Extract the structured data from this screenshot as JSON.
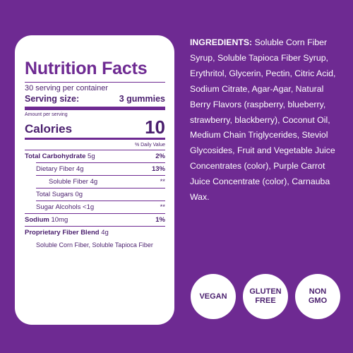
{
  "panel": {
    "title": "Nutrition Facts",
    "servings_per_container": "30 serving per container",
    "serving_size_label": "Serving size:",
    "serving_size_value": "3 gummies",
    "amount_per_serving": "Amount per serving",
    "calories_label": "Calories",
    "calories_value": "10",
    "daily_value_header": "% Daily Value",
    "rows": [
      {
        "label": "Total Carbohydrate",
        "amount": "5g",
        "pct": "2%"
      },
      {
        "label": "Dietary Fiber",
        "amount": "4g",
        "pct": "13%"
      },
      {
        "label": "Soluble Fiber",
        "amount": "4g",
        "pct": "**"
      },
      {
        "label": "Total Sugars",
        "amount": "0g",
        "pct": ""
      },
      {
        "label": "Sugar Alcohols",
        "amount": "<1g",
        "pct": "**"
      },
      {
        "label": "Sodium",
        "amount": "10mg",
        "pct": "1%"
      },
      {
        "label": "Proprietary Fiber Blend",
        "amount": "4g",
        "pct": ""
      }
    ],
    "blend_detail": "Soluble Corn Fiber, Soluble Tapioca Fiber"
  },
  "ingredients": {
    "label": "INGREDIENTS:",
    "text": "Soluble Corn Fiber Syrup, Soluble Tapioca Fiber Syrup, Erythritol, Glycerin, Pectin, Citric Acid, Sodium Citrate, Agar-Agar, Natural Berry Flavors (raspberry, blueberry, strawberry, blackberry), Coconut Oil, Medium Chain Triglycerides, Steviol Glycosides, Fruit and Vegetable Juice Concentrates (color), Purple Carrot Juice Concentrate (color), Carnauba Wax."
  },
  "badges": [
    "VEGAN",
    "GLUTEN FREE",
    "NON GMO"
  ],
  "colors": {
    "background": "#6e2a92",
    "panel": "#ffffff",
    "text_dark": "#4a1f6e"
  }
}
